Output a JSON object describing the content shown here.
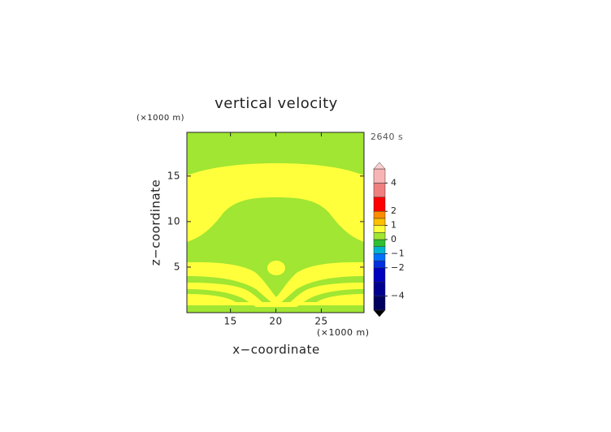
{
  "chart_data": {
    "type": "contour",
    "title": "vertical velocity",
    "time_label": "2640 s",
    "x_label": "x−coordinate",
    "y_label": "z−coordinate",
    "x_unit": "(×1000 m)",
    "y_unit": "(×1000 m)",
    "xlim": [
      10.2,
      29.7
    ],
    "xticks": [
      15,
      20,
      25
    ],
    "ylim": [
      0,
      19.8
    ],
    "yticks": [
      5,
      10,
      15
    ],
    "colorbar": {
      "bounds": [
        -5,
        -4,
        -3,
        -2,
        -1.5,
        -1,
        -0.5,
        0,
        0.5,
        1,
        1.5,
        2,
        3,
        4,
        5
      ],
      "colors": [
        "#000060",
        "#000090",
        "#0000c0",
        "#0030e0",
        "#0070ff",
        "#00b4d0",
        "#30c030",
        "#a0e632",
        "#ffff3c",
        "#ffc000",
        "#ff8c00",
        "#ff0000",
        "#f08080",
        "#f8b4b4"
      ],
      "extend_colors": [
        "#000000",
        "#fcd0d0"
      ],
      "ticks": [
        4,
        2,
        1,
        0,
        {
          "value": -1,
          "label": "−1"
        },
        {
          "value": -2,
          "label": "−2"
        },
        {
          "value": -4,
          "label": "−4"
        }
      ]
    }
  }
}
